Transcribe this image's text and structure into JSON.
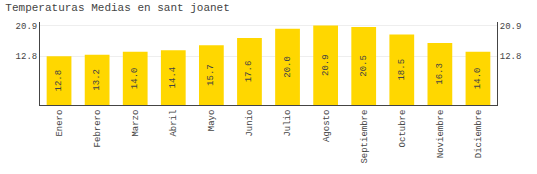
{
  "chart_data": {
    "type": "bar",
    "title": "Temperaturas Medias en sant joanet",
    "categories": [
      "Enero",
      "Febrero",
      "Marzo",
      "Abril",
      "Mayo",
      "Junio",
      "Julio",
      "Agosto",
      "Septiembre",
      "Octubre",
      "Noviembre",
      "Diciembre"
    ],
    "values": [
      12.8,
      13.2,
      14.0,
      14.4,
      15.7,
      17.6,
      20.0,
      20.9,
      20.5,
      18.5,
      16.3,
      14.0
    ],
    "value_labels": [
      "12.8",
      "13.2",
      "14.0",
      "14.4",
      "15.7",
      "17.6",
      "20.0",
      "20.9",
      "20.5",
      "18.5",
      "16.3",
      "14.0"
    ],
    "data_labels": true,
    "color": "#FFD700",
    "ylim": [
      0,
      21.8
    ],
    "yticks": [
      12.8,
      20.9
    ],
    "y2lim": [
      0,
      21.8
    ],
    "y2ticks": [
      12.8,
      20.9
    ],
    "grid": true
  }
}
